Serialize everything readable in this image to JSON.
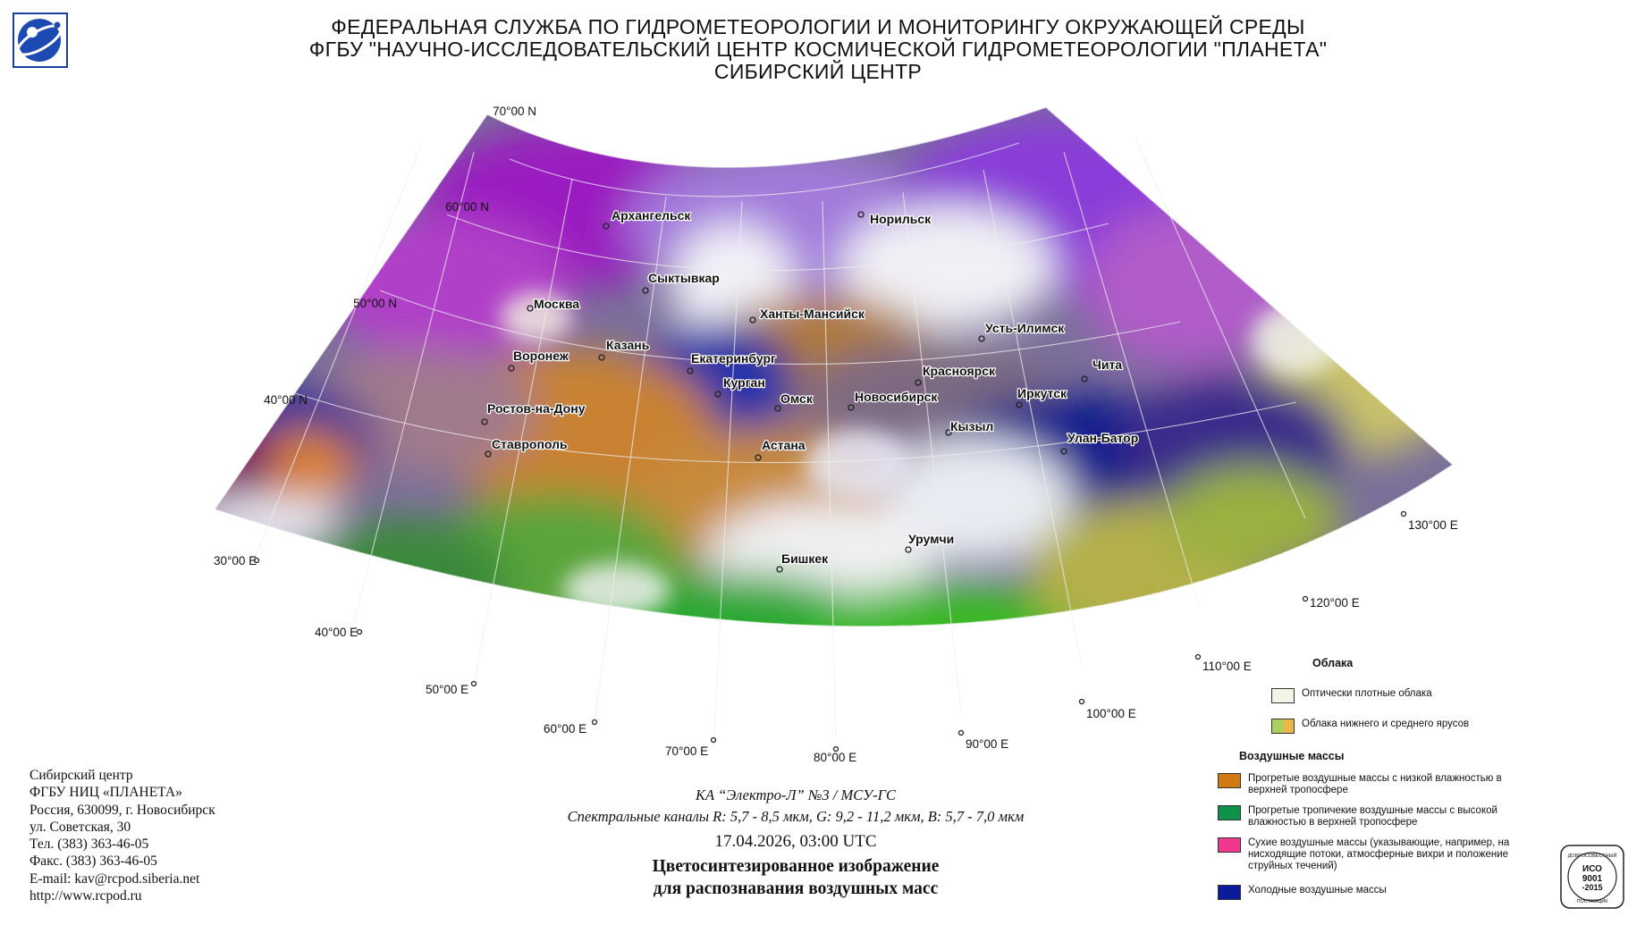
{
  "header": {
    "line1": "ФЕДЕРАЛЬНАЯ СЛУЖБА ПО ГИДРОМЕТЕОРОЛОГИИ И МОНИТОРИНГУ ОКРУЖАЮЩЕЙ СРЕДЫ",
    "line2": "ФГБУ \"НАУЧНО-ИССЛЕДОВАТЕЛЬСКИЙ ЦЕНТР КОСМИЧЕСКОЙ ГИДРОМЕТЕОРОЛОГИИ \"ПЛАНЕТА\"",
    "line3": "СИБИРСКИЙ ЦЕНТР"
  },
  "map": {
    "latitude_labels": [
      "70°00 N",
      "60°00 N",
      "50°00 N",
      "40°00 N"
    ],
    "longitude_labels": [
      "30°00 E",
      "40°00 E",
      "50°00 E",
      "60°00 E",
      "70°00 E",
      "80°00 E",
      "90°00 E",
      "100°00 E",
      "110°00 E",
      "120°00 E",
      "130°00 E"
    ],
    "cities": [
      "Архангельск",
      "Норильск",
      "Сыктывкар",
      "Ханты-Мансийск",
      "Москва",
      "Усть-Илимск",
      "Казань",
      "Воронеж",
      "Екатеринбург",
      "Красноярск",
      "Чита",
      "Курган",
      "Омск",
      "Новосибирск",
      "Иркутск",
      "Ростов-на-Дону",
      "Кызыл",
      "Улан-Батор",
      "Ставрополь",
      "Астана",
      "Урумчи",
      "Бишкек"
    ]
  },
  "contact": {
    "org": "Сибирский центр",
    "org2": "ФГБУ НИЦ «ПЛАНЕТА»",
    "address1": "Россия, 630099, г. Новосибирск",
    "address2": "ул. Советская, 30",
    "phone": "Тел. (383) 363-46-05",
    "fax": "Факс. (383) 363-46-05",
    "email": "E-mail: kav@rcpod.siberia.net",
    "web": "http://www.rcpod.ru"
  },
  "caption": {
    "satellite": "КА “Электро-Л” №3 / МСУ-ГС",
    "channels": "Спектральные каналы R: 5,7 - 8,5 мкм, G: 9,2 - 11,2 мкм, B: 5,7 - 7,0 мкм",
    "datetime": "17.04.2026, 03:00 UTC",
    "title1": "Цветосинтезированное изображение",
    "title2": "для распознавания воздушных масс"
  },
  "legend": {
    "clouds_title": "Облака",
    "clouds": [
      {
        "text": "Оптически плотные облака",
        "color": "#f3f3e6"
      },
      {
        "text": "Облака нижнего и среднего ярусов",
        "color": "#a9d15f",
        "color2": "#e8b94a"
      }
    ],
    "air_title": "Воздушные массы",
    "air": [
      {
        "text": "Прогретые воздушные массы с низкой влажностью в верхней тропосфере",
        "color": "#d07a12"
      },
      {
        "text": "Прогретые тропичекие воздушные массы с высокой влажностью в верхней тропосфере",
        "color": "#10914a"
      },
      {
        "text": "Сухие воздушные массы (указывающие, например, на нисходящие потоки, атмосферные вихри и положение струйных течений)",
        "color": "#f0388e"
      },
      {
        "text": "Холодные воздушные массы",
        "color": "#0c1a9c"
      }
    ]
  },
  "iso_badge": {
    "top": "ДОБРОСОВЕСТНЫЙ",
    "mid1": "ИСО",
    "mid2": "9001",
    "mid3": "-2015",
    "bottom": "ПОСТАВЩИК"
  }
}
